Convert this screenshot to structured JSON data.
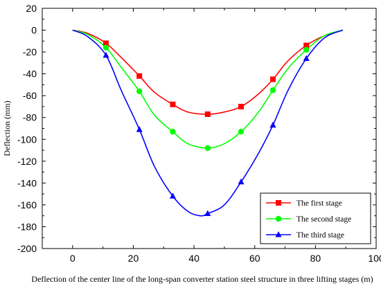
{
  "chart_data": {
    "type": "line",
    "title": "",
    "xlabel": "Deflection of the center line of the long-span converter station steel structure in three lifting stages (m)",
    "ylabel": "Deflection (mm)",
    "xlim": [
      -10,
      100
    ],
    "ylim": [
      -200,
      20
    ],
    "xticks": [
      0,
      20,
      40,
      60,
      80,
      100
    ],
    "yticks": [
      20,
      0,
      -20,
      -40,
      -60,
      -80,
      -100,
      -120,
      -140,
      -160,
      -180,
      -200
    ],
    "grid": false,
    "legend_position": "bottom-right",
    "series": [
      {
        "name": "The first stage",
        "color": "#ff0000",
        "marker": "square",
        "line": {
          "x": [
            0,
            5,
            11,
            16,
            22,
            27,
            33,
            38,
            44.5,
            50,
            55.5,
            61,
            66,
            71,
            77,
            83,
            89
          ],
          "y": [
            0,
            -3,
            -12,
            -25,
            -42,
            -57,
            -68,
            -75,
            -77,
            -75,
            -70,
            -59,
            -45,
            -28,
            -14,
            -5,
            0
          ]
        },
        "markers": {
          "x": [
            11,
            22,
            33,
            44.5,
            55.5,
            66,
            77
          ],
          "y": [
            -12,
            -42,
            -68,
            -77,
            -70,
            -45,
            -14
          ]
        }
      },
      {
        "name": "The second stage",
        "color": "#00ff00",
        "marker": "circle",
        "line": {
          "x": [
            0,
            5,
            11,
            16,
            22,
            27,
            33,
            38,
            44.5,
            50,
            55.5,
            61,
            66,
            71,
            77,
            83,
            89
          ],
          "y": [
            0,
            -4,
            -16,
            -34,
            -56,
            -78,
            -93,
            -104,
            -108,
            -104,
            -93,
            -76,
            -55,
            -35,
            -18,
            -5,
            0
          ]
        },
        "markers": {
          "x": [
            11,
            22,
            33,
            44.5,
            55.5,
            66,
            77
          ],
          "y": [
            -16,
            -56,
            -93,
            -108,
            -93,
            -55,
            -18
          ]
        }
      },
      {
        "name": "The third stage",
        "color": "#0000ff",
        "marker": "triangle",
        "line": {
          "x": [
            0,
            5,
            11,
            16,
            22,
            27,
            33,
            38,
            42,
            44.5,
            50,
            55.5,
            61,
            66,
            71,
            77,
            83,
            89
          ],
          "y": [
            0,
            -6,
            -23,
            -55,
            -91,
            -125,
            -152,
            -166,
            -170,
            -168,
            -160,
            -139,
            -114,
            -87,
            -55,
            -26,
            -7,
            0
          ]
        },
        "markers": {
          "x": [
            11,
            22,
            33,
            44.5,
            55.5,
            66,
            77
          ],
          "y": [
            -23,
            -91,
            -152,
            -168,
            -139,
            -87,
            -26
          ]
        }
      }
    ]
  }
}
